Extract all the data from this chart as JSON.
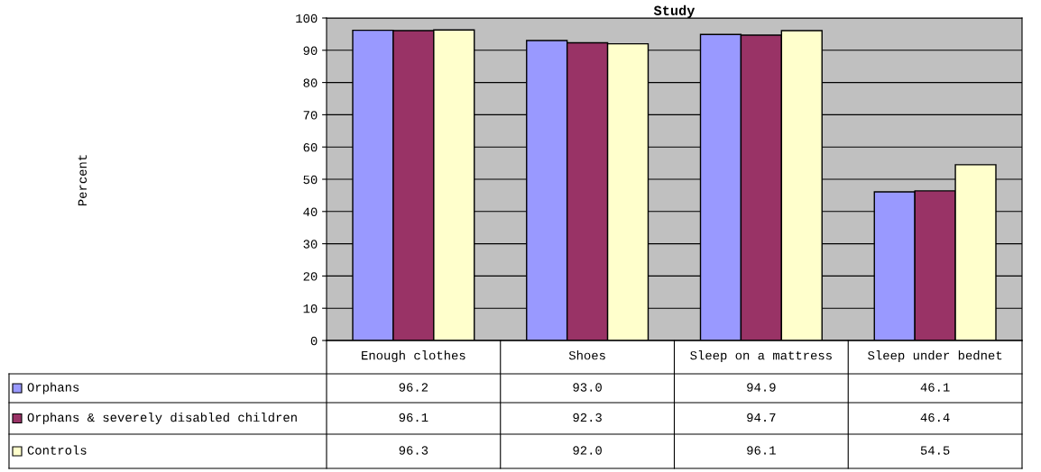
{
  "chart_data": {
    "type": "bar",
    "title": "Study",
    "annotations": [
      "Percent"
    ],
    "categories": [
      "Enough clothes",
      "Shoes",
      "Sleep on a mattress",
      "Sleep under bednet"
    ],
    "series": [
      {
        "name": "Orphans",
        "color": "#9999ff",
        "values": [
          96.2,
          93.0,
          94.9,
          46.1
        ],
        "value_labels": [
          "96.2",
          "93.0",
          "94.9",
          "46.1"
        ]
      },
      {
        "name": "Orphans & severely disabled children",
        "color": "#993366",
        "values": [
          96.1,
          92.3,
          94.7,
          46.4
        ],
        "value_labels": [
          "96.1",
          "92.3",
          "94.7",
          "46.4"
        ]
      },
      {
        "name": "Controls",
        "color": "#ffffcc",
        "values": [
          96.3,
          92.0,
          96.1,
          54.5
        ],
        "value_labels": [
          "96.3",
          "92.0",
          "96.1",
          "54.5"
        ]
      }
    ],
    "ylim": [
      0,
      100
    ],
    "yticks": [
      0,
      10,
      20,
      30,
      40,
      50,
      60,
      70,
      80,
      90,
      100
    ],
    "grid": "y",
    "legend": "bottom"
  }
}
